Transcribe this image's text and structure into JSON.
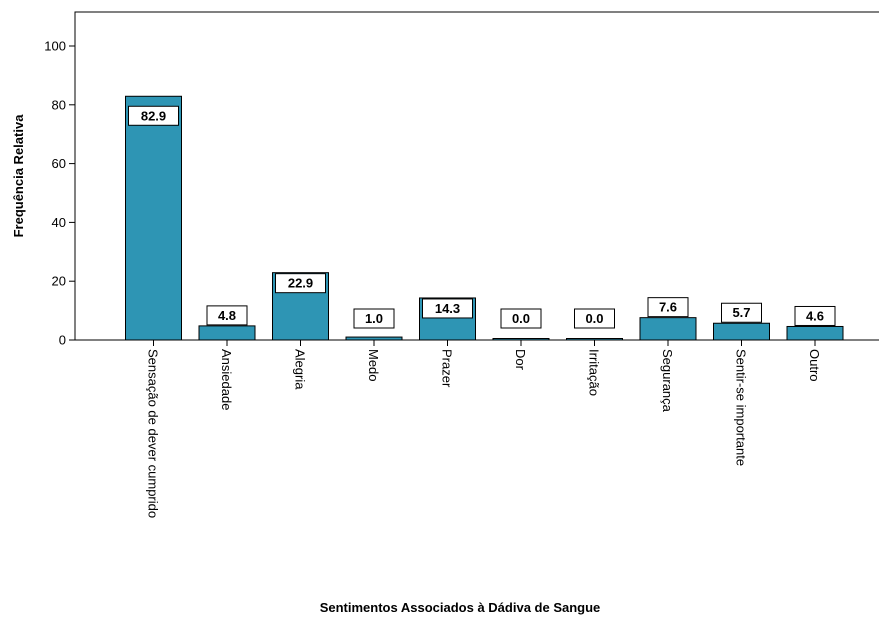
{
  "chart_data": {
    "type": "bar",
    "xlabel": "Sentimentos Associados à Dádiva de Sangue",
    "ylabel": "Frequência Relativa",
    "ylim": [
      0,
      110
    ],
    "yticks": [
      0,
      20,
      40,
      60,
      80,
      100
    ],
    "categories": [
      "Sensação de dever cumprido",
      "Ansiedade",
      "Alegria",
      "Medo",
      "Prazer",
      "Dor",
      "Irritação",
      "Segurança",
      "Sentir-se importante",
      "Outro"
    ],
    "values": [
      82.9,
      4.8,
      22.9,
      1.0,
      14.3,
      0.0,
      0.0,
      7.6,
      5.7,
      4.6
    ],
    "value_labels": [
      "82.9",
      "4.8",
      "22.9",
      "1.0",
      "14.3",
      "0.0",
      "0.0",
      "7.6",
      "5.7",
      "4.6"
    ],
    "bar_color": "#2e95b4",
    "grid": false,
    "legend": "none"
  }
}
